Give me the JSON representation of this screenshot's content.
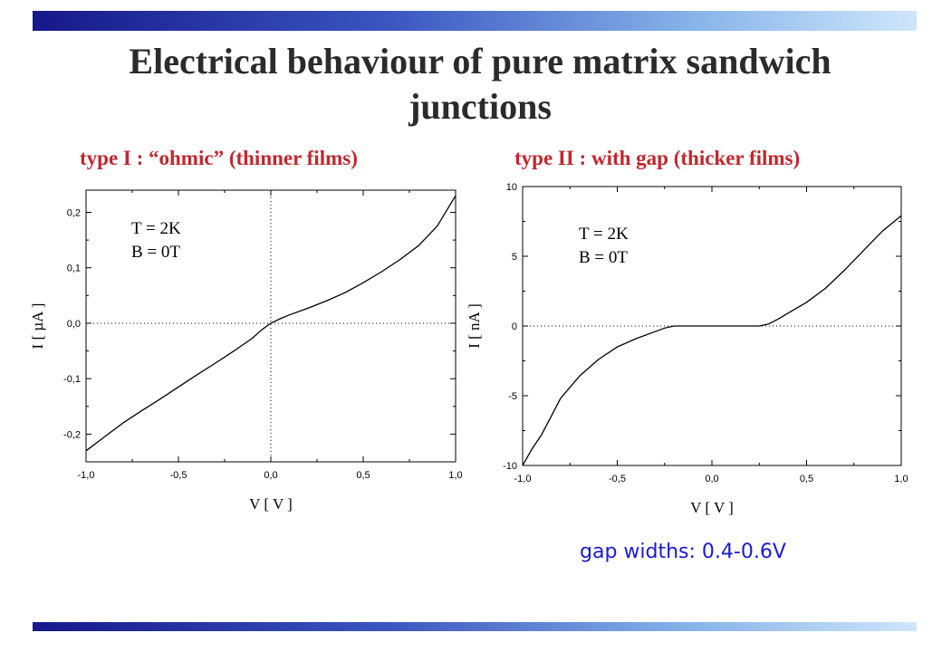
{
  "title_line1": "Electrical behaviour of pure matrix sandwich",
  "title_line2": "junctions",
  "colors": {
    "title": "#2b2b2b",
    "subtitle": "#c0282d",
    "note": "#1a1ad6",
    "curve": "#000000"
  },
  "note": "gap widths: 0.4-0.6V",
  "chart_data": [
    {
      "type": "line",
      "subtitle": "type I : “ohmic” (thinner films)",
      "xlabel": "V [ V ]",
      "ylabel": "I [ µA ]",
      "xlim": [
        -1.0,
        1.0
      ],
      "ylim": [
        -0.25,
        0.24
      ],
      "x_ticks": [
        -1.0,
        -0.5,
        0.0,
        0.5,
        1.0
      ],
      "x_tick_labels": [
        "-1,0",
        "-0,5",
        "0,0",
        "0,5",
        "1,0"
      ],
      "y_ticks": [
        -0.2,
        -0.1,
        0.0,
        0.1,
        0.2
      ],
      "y_tick_labels": [
        "-0,2",
        "-0,1",
        "0,0",
        "0,1",
        "0,2"
      ],
      "annotations": [
        "T = 2K",
        "B = 0T"
      ],
      "zero_lines": true,
      "series": [
        {
          "x": [
            -1.0,
            -0.9,
            -0.8,
            -0.7,
            -0.6,
            -0.5,
            -0.4,
            -0.3,
            -0.2,
            -0.1,
            -0.05,
            0.0,
            0.05,
            0.1,
            0.2,
            0.3,
            0.4,
            0.5,
            0.6,
            0.7,
            0.8,
            0.9,
            1.0
          ],
          "y": [
            -0.23,
            -0.205,
            -0.18,
            -0.158,
            -0.137,
            -0.115,
            -0.093,
            -0.072,
            -0.05,
            -0.027,
            -0.012,
            0.0,
            0.008,
            0.015,
            0.027,
            0.04,
            0.055,
            0.073,
            0.093,
            0.115,
            0.14,
            0.175,
            0.23
          ]
        }
      ]
    },
    {
      "type": "line",
      "subtitle": "type II : with gap (thicker films)",
      "xlabel": "V [ V ]",
      "ylabel": "I [ nA ]",
      "xlim": [
        -1.0,
        1.0
      ],
      "ylim": [
        -10,
        10
      ],
      "x_ticks": [
        -1.0,
        -0.5,
        0.0,
        0.5,
        1.0
      ],
      "x_tick_labels": [
        "-1,0",
        "-0,5",
        "0,0",
        "0,5",
        "1,0"
      ],
      "y_ticks": [
        -10,
        -5,
        0,
        5,
        10
      ],
      "y_tick_labels": [
        "-10",
        "-5",
        "0",
        "5",
        "10"
      ],
      "annotations": [
        "T = 2K",
        "B = 0T"
      ],
      "zero_lines": false,
      "series": [
        {
          "x": [
            -1.0,
            -0.95,
            -0.9,
            -0.85,
            -0.8,
            -0.7,
            -0.6,
            -0.5,
            -0.4,
            -0.3,
            -0.25,
            -0.2,
            -0.1,
            0.0,
            0.1,
            0.2,
            0.25,
            0.3,
            0.35,
            0.4,
            0.5,
            0.6,
            0.7,
            0.8,
            0.9,
            1.0
          ],
          "y": [
            -10.0,
            -8.8,
            -7.8,
            -6.5,
            -5.2,
            -3.6,
            -2.4,
            -1.5,
            -0.9,
            -0.4,
            -0.15,
            0.0,
            0.0,
            0.0,
            0.0,
            0.0,
            0.0,
            0.15,
            0.5,
            0.9,
            1.7,
            2.7,
            4.0,
            5.4,
            6.8,
            7.9
          ]
        }
      ]
    }
  ]
}
